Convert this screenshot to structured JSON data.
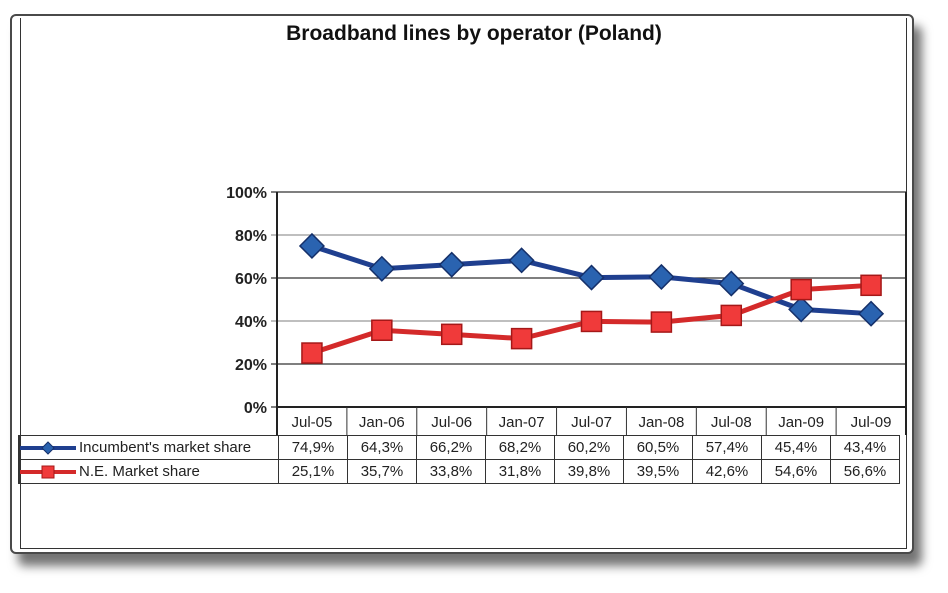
{
  "chart_data": {
    "type": "line",
    "title": "Broadband lines by operator (Poland)",
    "xlabel": "",
    "ylabel": "",
    "ylim": [
      0,
      100
    ],
    "yticks": [
      "0%",
      "20%",
      "40%",
      "60%",
      "80%",
      "100%"
    ],
    "grid": true,
    "legend_position": "data-table",
    "categories": [
      "Jul-05",
      "Jan-06",
      "Jul-06",
      "Jan-07",
      "Jul-07",
      "Jan-08",
      "Jul-08",
      "Jan-09",
      "Jul-09"
    ],
    "series": [
      {
        "name": "Incumbent's market share",
        "color": "#1f3f8f",
        "marker": "diamond",
        "values": [
          74.9,
          64.3,
          66.2,
          68.2,
          60.2,
          60.5,
          57.4,
          45.4,
          43.4
        ],
        "labels": [
          "74,9%",
          "64,3%",
          "66,2%",
          "68,2%",
          "60,2%",
          "60,5%",
          "57,4%",
          "45,4%",
          "43,4%"
        ]
      },
      {
        "name": "N.E. Market share",
        "color": "#d42a2a",
        "marker": "square",
        "values": [
          25.1,
          35.7,
          33.8,
          31.8,
          39.8,
          39.5,
          42.6,
          54.6,
          56.6
        ],
        "labels": [
          "25,1%",
          "35,7%",
          "33,8%",
          "31,8%",
          "39,8%",
          "39,5%",
          "42,6%",
          "54,6%",
          "56,6%"
        ]
      }
    ]
  }
}
